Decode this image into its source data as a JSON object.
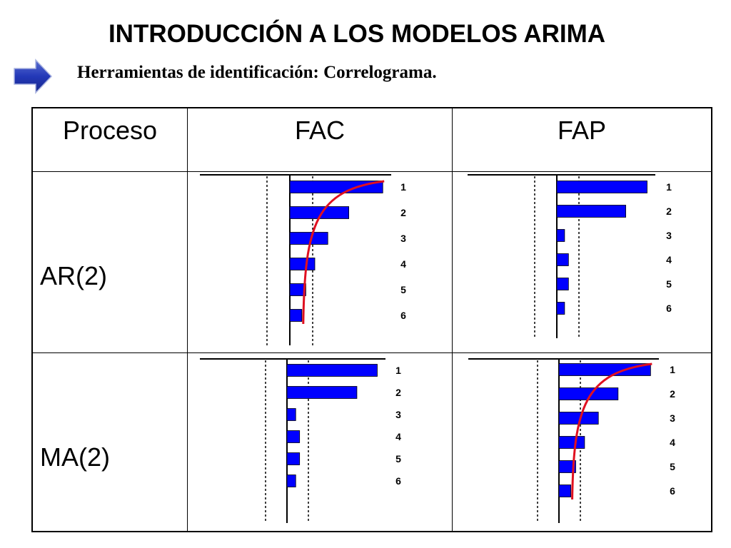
{
  "title": "INTRODUCCIÓN A LOS MODELOS ARIMA",
  "subtitle": "Herramientas de identificación: Correlograma.",
  "arrow_icon": "right-arrow-icon",
  "colors": {
    "bar": "#0000ff",
    "curve": "#e01020",
    "text": "#000000"
  },
  "table": {
    "headers": [
      "Proceso",
      "FAC",
      "FAP"
    ],
    "rows": [
      "AR(2)",
      "MA(2)"
    ]
  },
  "chart_data": [
    {
      "type": "bar",
      "process": "AR(2)",
      "function": "FAC",
      "orientation": "horizontal",
      "categories": [
        "1",
        "2",
        "3",
        "4",
        "5",
        "6"
      ],
      "values": [
        0.93,
        0.59,
        0.38,
        0.25,
        0.16,
        0.12
      ],
      "decay_curve": true,
      "xlim": [
        -0.2,
        1
      ]
    },
    {
      "type": "bar",
      "process": "AR(2)",
      "function": "FAP",
      "orientation": "horizontal",
      "categories": [
        "1",
        "2",
        "3",
        "4",
        "5",
        "6"
      ],
      "values": [
        0.93,
        0.71,
        0.08,
        0.12,
        0.12,
        0.08
      ],
      "decay_curve": false,
      "xlim": [
        -0.2,
        1
      ]
    },
    {
      "type": "bar",
      "process": "MA(2)",
      "function": "FAC",
      "orientation": "horizontal",
      "categories": [
        "1",
        "2",
        "3",
        "4",
        "5",
        "6"
      ],
      "values": [
        0.93,
        0.72,
        0.09,
        0.13,
        0.13,
        0.09
      ],
      "decay_curve": false,
      "xlim": [
        -0.2,
        1
      ]
    },
    {
      "type": "bar",
      "process": "MA(2)",
      "function": "FAP",
      "orientation": "horizontal",
      "categories": [
        "1",
        "2",
        "3",
        "4",
        "5",
        "6"
      ],
      "values": [
        0.93,
        0.6,
        0.4,
        0.26,
        0.17,
        0.12
      ],
      "decay_curve": true,
      "xlim": [
        -0.2,
        1
      ]
    }
  ]
}
